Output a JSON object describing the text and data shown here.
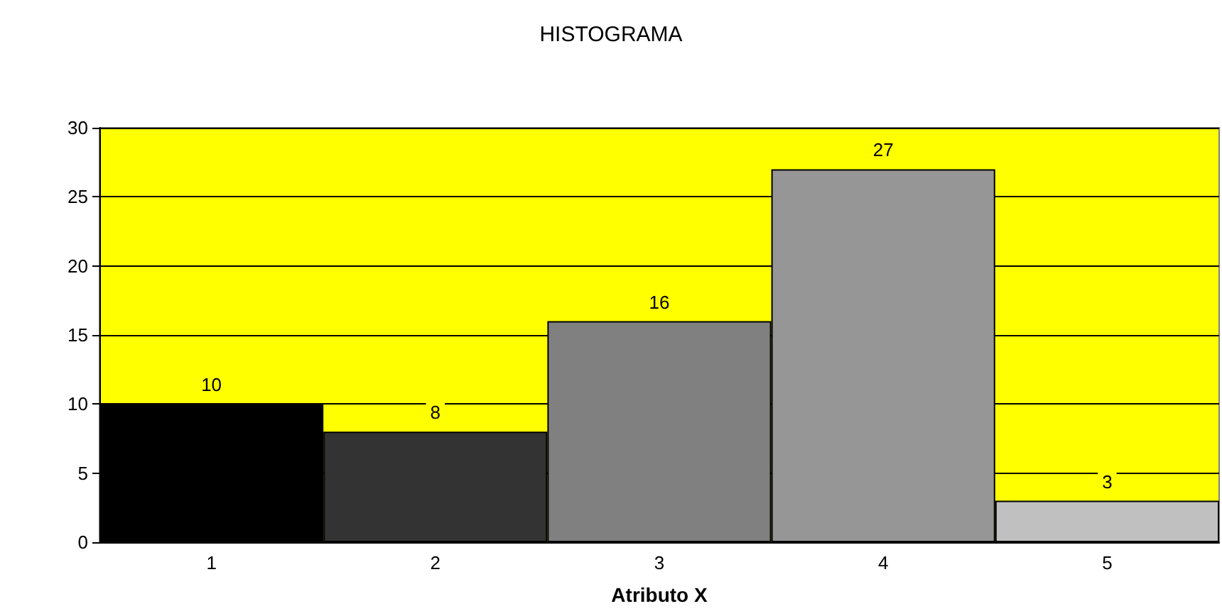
{
  "chart_data": {
    "type": "bar",
    "title": "HISTOGRAMA",
    "xlabel": "Atributo X",
    "categories": [
      "1",
      "2",
      "3",
      "4",
      "5"
    ],
    "values": [
      10,
      8,
      16,
      27,
      3
    ],
    "colors": [
      "#000000",
      "#333333",
      "#808080",
      "#969696",
      "#c0c0c0"
    ],
    "ylim": [
      0,
      30
    ],
    "yticks": [
      0,
      5,
      10,
      15,
      20,
      25,
      30
    ],
    "grid": "y",
    "data_labels": true
  }
}
